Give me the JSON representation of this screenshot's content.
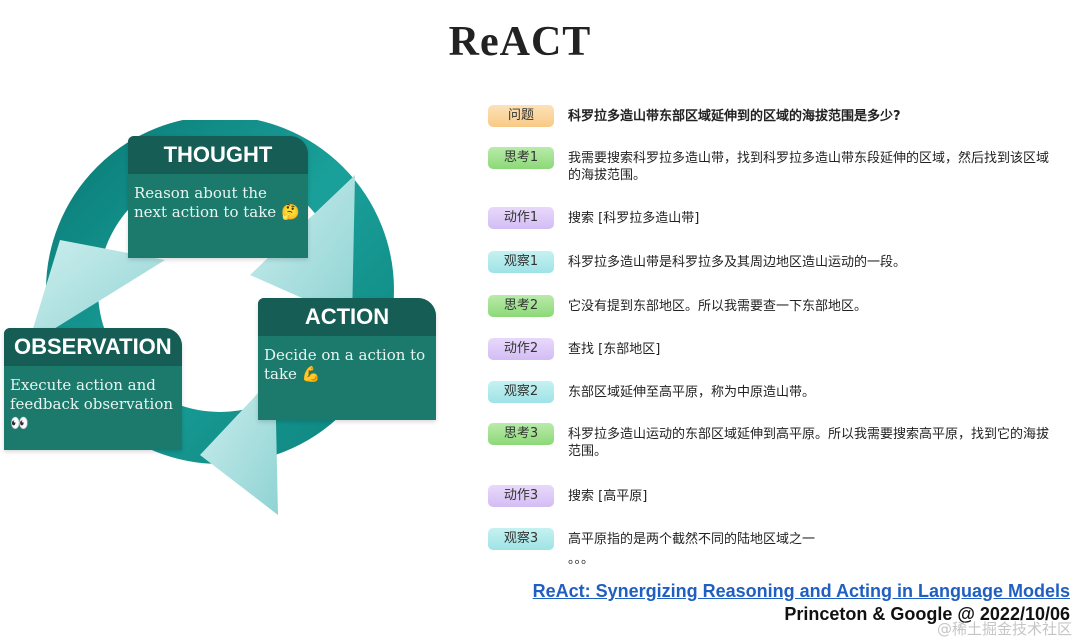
{
  "title": "ReACT",
  "cycle": {
    "thought": {
      "heading": "THOUGHT",
      "text": "Reason about the next action to take",
      "emoji": "🤔"
    },
    "action": {
      "heading": "ACTION",
      "text": "Decide on a action to take",
      "emoji": "💪"
    },
    "observation": {
      "heading": "OBSERVATION",
      "text": "Execute action and feedback observation",
      "emoji": "👀"
    }
  },
  "steps": [
    {
      "tag": "问题",
      "kind": "question",
      "text": "科罗拉多造山带东部区域延伸到的区域的海拔范围是多少?"
    },
    {
      "tag": "思考1",
      "kind": "thought",
      "text": "我需要搜索科罗拉多造山带，找到科罗拉多造山带东段延伸的区域，然后找到该区域的海拔范围。"
    },
    {
      "tag": "动作1",
      "kind": "action",
      "text": "搜索 [科罗拉多造山带]"
    },
    {
      "tag": "观察1",
      "kind": "observation",
      "text": "科罗拉多造山带是科罗拉多及其周边地区造山运动的一段。"
    },
    {
      "tag": "思考2",
      "kind": "thought",
      "text": "它没有提到东部地区。所以我需要查一下东部地区。"
    },
    {
      "tag": "动作2",
      "kind": "action",
      "text": "查找 [东部地区]"
    },
    {
      "tag": "观察2",
      "kind": "observation",
      "text": "东部区域延伸至高平原，称为中原造山带。"
    },
    {
      "tag": "思考3",
      "kind": "thought",
      "text": "科罗拉多造山运动的东部区域延伸到高平原。所以我需要搜索高平原，找到它的海拔范围。"
    },
    {
      "tag": "动作3",
      "kind": "action",
      "text": "搜索 [高平原]"
    },
    {
      "tag": "观察3",
      "kind": "observation",
      "text": "高平原指的是两个截然不同的陆地区域之一"
    }
  ],
  "ellipsis": "。。。",
  "reference_link": "ReAct: Synergizing Reasoning and Acting in Language Models",
  "credit": "Princeton & Google @ 2022/10/06",
  "watermark": "@稀土掘金技术社区",
  "colors": {
    "card_body": "#1c7a6c",
    "card_head": "#165e55",
    "arrow_dark": "#0e8a84",
    "arrow_light": "#a9dede",
    "link": "#1f5fc2"
  }
}
